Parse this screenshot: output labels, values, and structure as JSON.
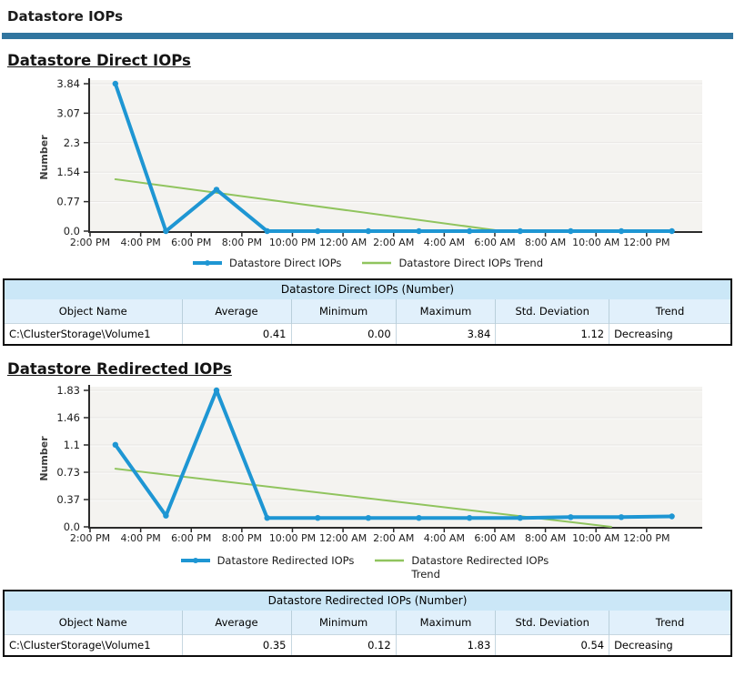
{
  "page": {
    "title": "Datastore IOPs"
  },
  "theme": {
    "divider_color": "#31759f",
    "series_color": "#1e96d3",
    "trend_color": "#90c45e",
    "plot_bg": "#f4f3f0",
    "gridline_dark": "#e6e4e2",
    "gridline_light": "#fcfcfb",
    "axis_color": "#2b2b2b",
    "table_title_bg": "#cbe7f7",
    "table_header_bg": "#e1f0fb"
  },
  "chart_data": [
    {
      "type": "line",
      "title": "Datastore Direct IOPs",
      "ylabel": "Number",
      "ylim": [
        0,
        3.84
      ],
      "y_ticks": [
        "0.0",
        "0.77",
        "1.54",
        "2.3",
        "3.07",
        "3.84"
      ],
      "x_ticks": [
        "2:00 PM",
        "4:00 PM",
        "6:00 PM",
        "8:00 PM",
        "10:00 PM",
        "12:00 AM",
        "2:00 AM",
        "4:00 AM",
        "6:00 AM",
        "8:00 AM",
        "10:00 AM",
        "12:00 PM"
      ],
      "x_unit": "hours elapsed from 2:00 PM, samples every 2 hours",
      "grid": true,
      "legend_position": "bottom",
      "series": [
        {
          "name": "Datastore Direct IOPs Trend",
          "color": "#90c45e",
          "markers": false,
          "x_hours": [
            1,
            16.3
          ],
          "values": [
            1.35,
            0.0
          ]
        },
        {
          "name": "Datastore Direct IOPs",
          "color": "#1e96d3",
          "markers": true,
          "x_hours": [
            1,
            3,
            5,
            7,
            9,
            11,
            13,
            15,
            17,
            19,
            21,
            23
          ],
          "values": [
            3.84,
            0.0,
            1.08,
            0.0,
            0.0,
            0.0,
            0.0,
            0.0,
            0.0,
            0.0,
            0.0,
            0.0
          ]
        }
      ]
    },
    {
      "type": "line",
      "title": "Datastore Redirected IOPs",
      "ylabel": "Number",
      "ylim": [
        0,
        1.83
      ],
      "y_ticks": [
        "0.0",
        "0.37",
        "0.73",
        "1.1",
        "1.46",
        "1.83"
      ],
      "x_ticks": [
        "2:00 PM",
        "4:00 PM",
        "6:00 PM",
        "8:00 PM",
        "10:00 PM",
        "12:00 AM",
        "2:00 AM",
        "4:00 AM",
        "6:00 AM",
        "8:00 AM",
        "10:00 AM",
        "12:00 PM"
      ],
      "x_unit": "hours elapsed from 2:00 PM, samples every 2 hours",
      "grid": true,
      "legend_position": "bottom",
      "series": [
        {
          "name": "Datastore Redirected IOPs Trend",
          "color": "#90c45e",
          "markers": false,
          "x_hours": [
            1,
            20.6
          ],
          "values": [
            0.78,
            0.0
          ]
        },
        {
          "name": "Datastore Redirected IOPs",
          "color": "#1e96d3",
          "markers": true,
          "x_hours": [
            1,
            3,
            5,
            7,
            9,
            11,
            13,
            15,
            17,
            19,
            21,
            23
          ],
          "values": [
            1.1,
            0.15,
            1.83,
            0.12,
            0.12,
            0.12,
            0.12,
            0.12,
            0.12,
            0.13,
            0.13,
            0.14
          ]
        }
      ]
    }
  ],
  "tables": [
    {
      "title": "Datastore Direct IOPs (Number)",
      "columns": [
        "Object Name",
        "Average",
        "Minimum",
        "Maximum",
        "Std. Deviation",
        "Trend"
      ],
      "rows": [
        [
          "C:\\ClusterStorage\\Volume1",
          "0.41",
          "0.00",
          "3.84",
          "1.12",
          "Decreasing"
        ]
      ]
    },
    {
      "title": "Datastore Redirected IOPs (Number)",
      "columns": [
        "Object Name",
        "Average",
        "Minimum",
        "Maximum",
        "Std. Deviation",
        "Trend"
      ],
      "rows": [
        [
          "C:\\ClusterStorage\\Volume1",
          "0.35",
          "0.12",
          "1.83",
          "0.54",
          "Decreasing"
        ]
      ]
    }
  ]
}
